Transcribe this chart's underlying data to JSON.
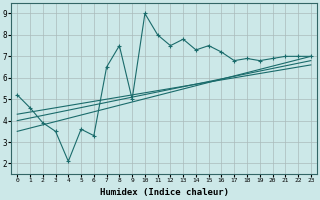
{
  "title": "",
  "xlabel": "Humidex (Indice chaleur)",
  "ylabel": "",
  "xlim": [
    -0.5,
    23.5
  ],
  "ylim": [
    1.5,
    9.5
  ],
  "xticks": [
    0,
    1,
    2,
    3,
    4,
    5,
    6,
    7,
    8,
    9,
    10,
    11,
    12,
    13,
    14,
    15,
    16,
    17,
    18,
    19,
    20,
    21,
    22,
    23
  ],
  "yticks": [
    2,
    3,
    4,
    5,
    6,
    7,
    8,
    9
  ],
  "bg_color": "#cce8e8",
  "line_color": "#1a6b6b",
  "grid_color": "#aabbbb",
  "line1_x": [
    0,
    1,
    2,
    3,
    4,
    5,
    6,
    7,
    8,
    9,
    10,
    11,
    12,
    13,
    14,
    15,
    16,
    17,
    18,
    19,
    20,
    21,
    22,
    23
  ],
  "line1_y": [
    5.2,
    4.6,
    3.9,
    3.5,
    2.1,
    3.6,
    3.3,
    6.5,
    7.5,
    5.0,
    9.0,
    8.0,
    7.5,
    7.8,
    7.3,
    7.5,
    7.2,
    6.8,
    6.9,
    6.8,
    6.9,
    7.0,
    7.0,
    7.0
  ],
  "line2_x": [
    0,
    23
  ],
  "line2_y": [
    3.5,
    7.0
  ],
  "line3_x": [
    0,
    23
  ],
  "line3_y": [
    4.0,
    6.8
  ],
  "line4_x": [
    0,
    23
  ],
  "line4_y": [
    4.3,
    6.6
  ]
}
